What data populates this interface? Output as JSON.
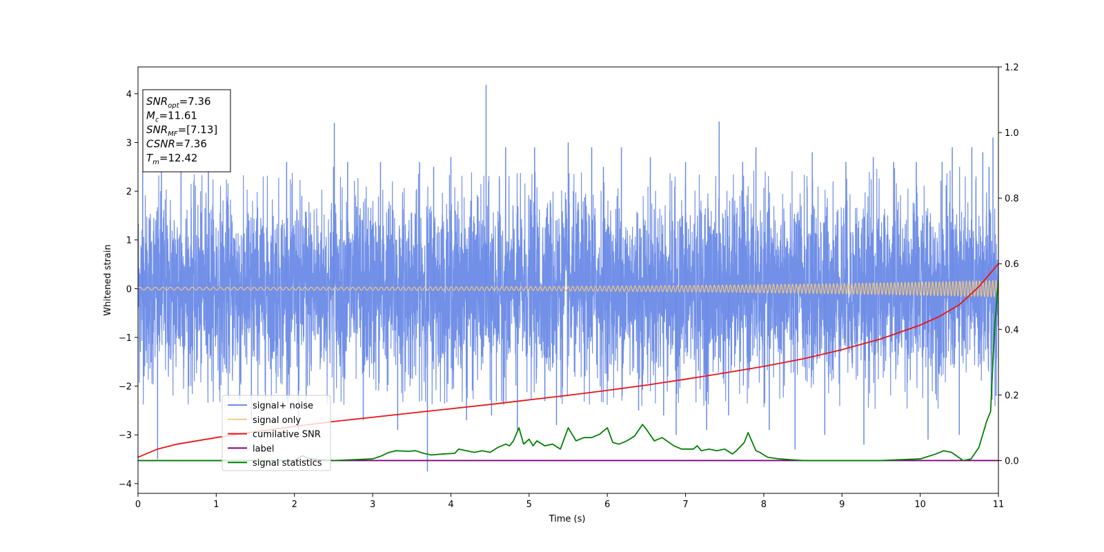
{
  "chart_data": {
    "type": "line",
    "xlabel": "Time (s)",
    "ylabel": "Whitened strain",
    "xlim": [
      0,
      11
    ],
    "ylim": [
      -4.2,
      4.55
    ],
    "y2lim": [
      -0.1,
      1.2
    ],
    "x_ticks": [
      "0",
      "1",
      "2",
      "3",
      "4",
      "5",
      "6",
      "7",
      "8",
      "9",
      "10",
      "11"
    ],
    "y_ticks": [
      "4",
      "3",
      "2",
      "1",
      "0",
      "−1",
      "−2",
      "−3",
      "−4"
    ],
    "y_tick_values": [
      4,
      3,
      2,
      1,
      0,
      -1,
      -2,
      -3,
      -4
    ],
    "y2_ticks": [
      "1.2",
      "1.0",
      "0.8",
      "0.6",
      "0.4",
      "0.2",
      "0.0"
    ],
    "y2_tick_values": [
      1.2,
      1.0,
      0.8,
      0.6,
      0.4,
      0.2,
      0.0
    ],
    "grid": false,
    "legend_position": "lower-left",
    "annotation": [
      {
        "sym": "SNR",
        "sub": "opt",
        "val": "=7.36"
      },
      {
        "sym": "M",
        "sub": "c",
        "val": "=11.61"
      },
      {
        "sym": "SNR",
        "sub": "MF",
        "val": "=[7.13]"
      },
      {
        "sym": "CSNR",
        "sub": "",
        "val": "=7.36"
      },
      {
        "sym": "T",
        "sub": "m",
        "val": "=12.42"
      }
    ],
    "series": [
      {
        "name": "signal+ noise",
        "color": "#6a8ae6",
        "axis": "left",
        "description_std": 1.0,
        "spikes": [
          [
            0.06,
            2.4
          ],
          [
            0.25,
            -3.5
          ],
          [
            0.3,
            2.7
          ],
          [
            0.55,
            2.5
          ],
          [
            0.9,
            2.6
          ],
          [
            1.3,
            -2.3
          ],
          [
            1.45,
            -2.7
          ],
          [
            1.9,
            2.6
          ],
          [
            2.05,
            -2.9
          ],
          [
            2.15,
            -2.5
          ],
          [
            2.5,
            2.5
          ],
          [
            2.51,
            3.4
          ],
          [
            2.68,
            2.6
          ],
          [
            2.88,
            -2.7
          ],
          [
            3.1,
            2.6
          ],
          [
            3.32,
            -2.9
          ],
          [
            3.6,
            2.6
          ],
          [
            3.7,
            -3.75
          ],
          [
            3.78,
            2.5
          ],
          [
            4.0,
            2.7
          ],
          [
            4.2,
            -2.7
          ],
          [
            4.45,
            4.18
          ],
          [
            4.52,
            -2.6
          ],
          [
            4.7,
            2.9
          ],
          [
            4.85,
            -2.9
          ],
          [
            5.07,
            2.9
          ],
          [
            5.35,
            -2.8
          ],
          [
            5.5,
            3.0
          ],
          [
            5.8,
            2.9
          ],
          [
            5.95,
            2.5
          ],
          [
            6.18,
            2.9
          ],
          [
            6.4,
            -2.5
          ],
          [
            6.55,
            2.7
          ],
          [
            6.72,
            -2.6
          ],
          [
            6.88,
            -3.0
          ],
          [
            7.0,
            2.6
          ],
          [
            7.27,
            -2.9
          ],
          [
            7.43,
            3.43
          ],
          [
            7.55,
            -2.6
          ],
          [
            7.73,
            2.6
          ],
          [
            7.9,
            2.9
          ],
          [
            8.07,
            -2.9
          ],
          [
            8.4,
            -3.3
          ],
          [
            8.62,
            2.8
          ],
          [
            8.78,
            -3.0
          ],
          [
            9.05,
            2.6
          ],
          [
            9.28,
            -3.2
          ],
          [
            9.4,
            2.7
          ],
          [
            9.66,
            2.6
          ],
          [
            9.95,
            2.6
          ],
          [
            10.1,
            -3.1
          ],
          [
            10.28,
            2.6
          ],
          [
            10.41,
            2.9
          ],
          [
            10.5,
            -3.0
          ],
          [
            10.66,
            2.9
          ],
          [
            10.8,
            2.8
          ],
          [
            10.88,
            2.5
          ],
          [
            10.93,
            3.1
          ],
          [
            10.97,
            -2.2
          ]
        ]
      },
      {
        "name": "signal only",
        "color": "#f5c77e",
        "axis": "left",
        "amplitude_start": 0.03,
        "amplitude_end": 0.17,
        "frequency_start_hz": 10,
        "frequency_end_hz": 24
      },
      {
        "name": "cumilative SNR",
        "color": "#ee1111",
        "axis": "right",
        "x": [
          0,
          0.25,
          0.5,
          1,
          1.5,
          2,
          2.5,
          3,
          3.5,
          4,
          4.5,
          5,
          5.5,
          6,
          6.5,
          7,
          7.5,
          8,
          8.5,
          9,
          9.5,
          10,
          10.25,
          10.5,
          10.75,
          11
        ],
        "values": [
          0.01,
          0.035,
          0.05,
          0.07,
          0.088,
          0.104,
          0.119,
          0.132,
          0.145,
          0.158,
          0.171,
          0.185,
          0.199,
          0.214,
          0.23,
          0.248,
          0.267,
          0.287,
          0.31,
          0.338,
          0.371,
          0.413,
          0.44,
          0.475,
          0.53,
          0.6
        ]
      },
      {
        "name": "label",
        "color": "#800080",
        "axis": "right",
        "x": [
          0,
          11
        ],
        "values": [
          0,
          0
        ]
      },
      {
        "name": "signal statistics",
        "color": "#008000",
        "axis": "right",
        "x": [
          0,
          0.5,
          1,
          1.5,
          2,
          2.1,
          2.2,
          2.5,
          3,
          3.1,
          3.2,
          3.3,
          3.45,
          3.55,
          3.65,
          3.75,
          3.9,
          4.05,
          4.1,
          4.2,
          4.3,
          4.4,
          4.5,
          4.6,
          4.7,
          4.75,
          4.8,
          4.87,
          4.93,
          5.0,
          5.05,
          5.1,
          5.2,
          5.3,
          5.4,
          5.5,
          5.6,
          5.7,
          5.8,
          5.9,
          6.0,
          6.07,
          6.15,
          6.25,
          6.35,
          6.45,
          6.5,
          6.6,
          6.7,
          6.85,
          6.95,
          7.1,
          7.15,
          7.2,
          7.3,
          7.4,
          7.5,
          7.6,
          7.65,
          7.75,
          7.8,
          7.9,
          7.95,
          8.05,
          8.2,
          8.5,
          9.0,
          9.5,
          10.0,
          10.2,
          10.3,
          10.4,
          10.55,
          10.65,
          10.75,
          10.85,
          10.9,
          10.95,
          11.0
        ],
        "values": [
          0.0,
          0.0,
          0.0,
          0.0,
          0.0,
          0.015,
          0.005,
          0.0,
          0.005,
          0.013,
          0.024,
          0.03,
          0.028,
          0.03,
          0.022,
          0.017,
          0.02,
          0.022,
          0.035,
          0.03,
          0.025,
          0.03,
          0.025,
          0.04,
          0.05,
          0.045,
          0.06,
          0.1,
          0.05,
          0.065,
          0.045,
          0.06,
          0.045,
          0.05,
          0.035,
          0.1,
          0.06,
          0.07,
          0.07,
          0.08,
          0.1,
          0.055,
          0.05,
          0.06,
          0.075,
          0.11,
          0.095,
          0.06,
          0.07,
          0.045,
          0.035,
          0.035,
          0.045,
          0.03,
          0.035,
          0.03,
          0.035,
          0.02,
          0.03,
          0.055,
          0.085,
          0.03,
          0.025,
          0.01,
          0.005,
          0.0,
          0.0,
          0.0,
          0.005,
          0.02,
          0.03,
          0.025,
          0.0,
          0.005,
          0.04,
          0.12,
          0.15,
          0.4,
          0.55
        ]
      }
    ]
  }
}
